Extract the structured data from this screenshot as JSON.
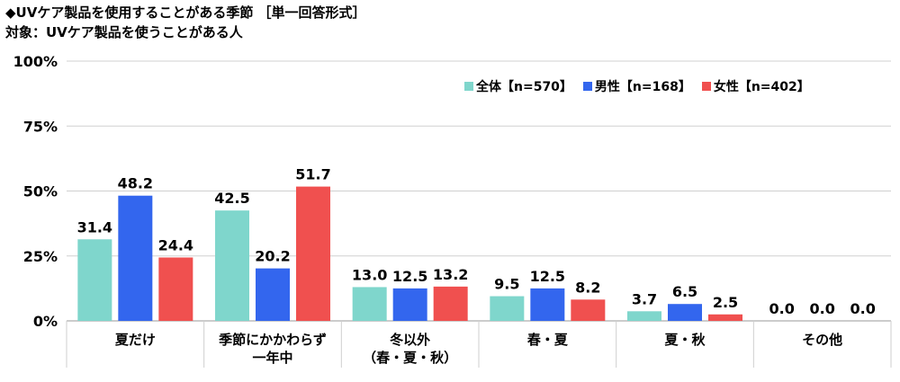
{
  "title": "◆UVケア製品を使用することがある季節 ［単一回答形式］",
  "subtitle": "対象：UVケア製品を使うことがある人",
  "chart_data": {
    "type": "bar",
    "ylim": [
      0,
      100
    ],
    "yticks": [
      "0%",
      "25%",
      "50%",
      "75%",
      "100%"
    ],
    "ytick_values": [
      0,
      25,
      50,
      75,
      100
    ],
    "grid": true,
    "legend_position": "top-right",
    "categories": [
      [
        "夏だけ"
      ],
      [
        "季節にかかわらず",
        "一年中"
      ],
      [
        "冬以外",
        "（春・夏・秋）"
      ],
      [
        "春・夏"
      ],
      [
        "夏・秋"
      ],
      [
        "その他"
      ]
    ],
    "series": [
      {
        "name": "全体【n=570】",
        "color": "#7fd6cc",
        "values": [
          31.4,
          42.5,
          13.0,
          9.5,
          3.7,
          0.0
        ]
      },
      {
        "name": "男性【n=168】",
        "color": "#3366ee",
        "values": [
          48.2,
          20.2,
          12.5,
          12.5,
          6.5,
          0.0
        ]
      },
      {
        "name": "女性【n=402】",
        "color": "#f0504f",
        "values": [
          24.4,
          51.7,
          13.2,
          8.2,
          2.5,
          0.0
        ]
      }
    ]
  }
}
